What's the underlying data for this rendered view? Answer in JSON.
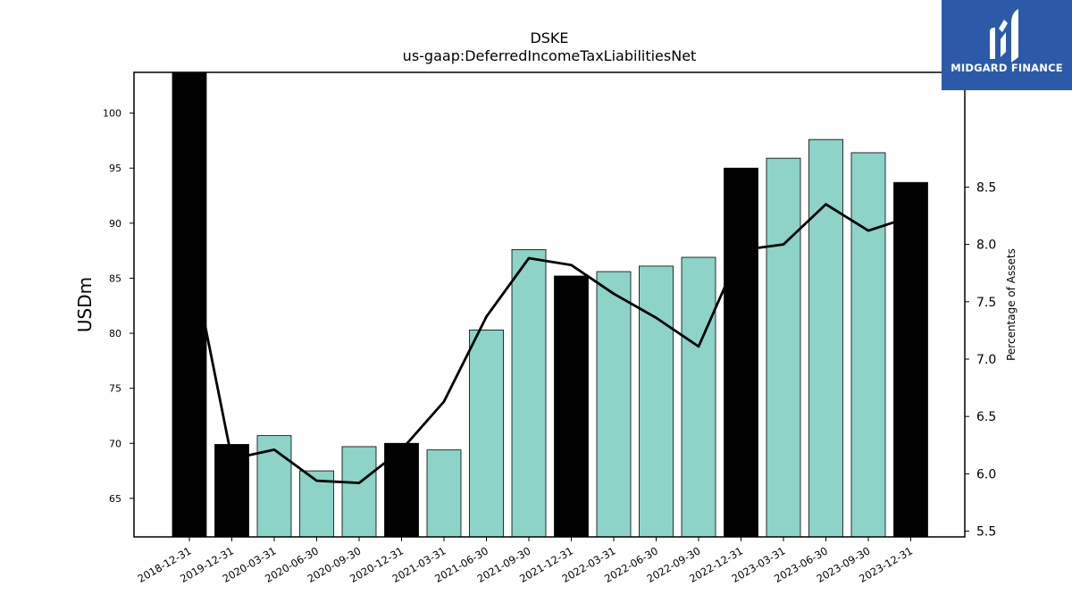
{
  "chart_data": {
    "type": "bar",
    "title": "DSKE",
    "subtitle": "us-gaap:DeferredIncomeTaxLiabilitiesNet",
    "ylabel": "USDm",
    "y2label": "Percentage of Assets",
    "ylim": [
      61.5,
      103.7
    ],
    "y2lim": [
      5.45,
      9.5
    ],
    "yticks": [
      65,
      70,
      75,
      80,
      85,
      90,
      95,
      100
    ],
    "y2ticks": [
      5.5,
      6.0,
      6.5,
      7.0,
      7.5,
      8.0,
      8.5
    ],
    "categories": [
      "2018-12-31",
      "2019-12-31",
      "2020-03-31",
      "2020-06-30",
      "2020-09-30",
      "2020-12-31",
      "2021-03-31",
      "2021-06-30",
      "2021-09-30",
      "2021-12-31",
      "2022-03-31",
      "2022-06-30",
      "2022-09-30",
      "2022-12-31",
      "2023-03-31",
      "2023-06-30",
      "2023-09-30",
      "2023-12-31"
    ],
    "values": [
      103.7,
      69.9,
      70.7,
      67.5,
      69.7,
      70.0,
      69.4,
      80.3,
      87.6,
      85.2,
      85.6,
      86.1,
      86.9,
      95.0,
      95.9,
      97.6,
      96.4,
      93.7
    ],
    "annual": [
      true,
      true,
      false,
      false,
      false,
      true,
      false,
      false,
      false,
      true,
      false,
      false,
      false,
      true,
      false,
      false,
      false,
      true
    ],
    "line_series": {
      "axis": "right",
      "values": [
        7.98,
        6.13,
        6.21,
        5.94,
        5.92,
        6.21,
        6.63,
        7.37,
        7.88,
        7.82,
        7.57,
        7.36,
        7.11,
        7.95,
        8.0,
        8.35,
        8.12,
        8.24
      ]
    },
    "colors": {
      "annual_bar": "#000000",
      "quarter_bar": "#8dd3c7",
      "line": "#000000"
    },
    "grid": false,
    "legend": "none"
  },
  "logo": {
    "text": "MIDGARD FINANCE",
    "icon": "midgard-logo-icon"
  }
}
